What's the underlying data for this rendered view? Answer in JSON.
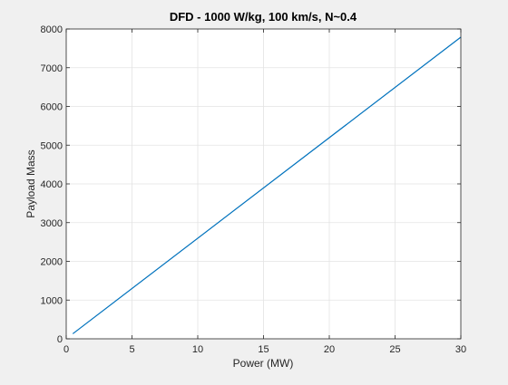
{
  "chart_data": {
    "type": "line",
    "title": "DFD - 1000 W/kg, 100 km/s, N~0.4",
    "xlabel": "Power (MW)",
    "ylabel": "Payload Mass",
    "xlim": [
      0,
      30
    ],
    "ylim": [
      0,
      8000
    ],
    "xticks": [
      0,
      5,
      10,
      15,
      20,
      25,
      30
    ],
    "yticks": [
      0,
      1000,
      2000,
      3000,
      4000,
      5000,
      6000,
      7000,
      8000
    ],
    "grid": true,
    "series": [
      {
        "color": "#0072bd",
        "x": [
          0.5,
          30
        ],
        "y": [
          130,
          7790
        ]
      }
    ]
  }
}
